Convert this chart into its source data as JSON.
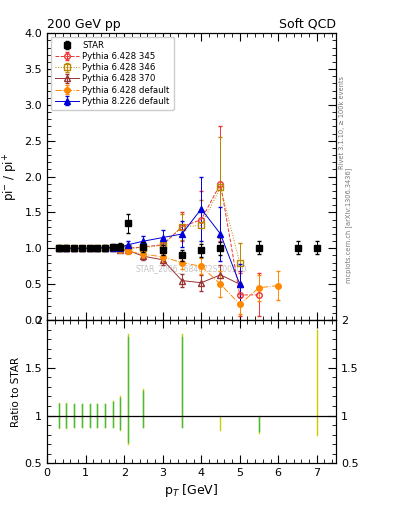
{
  "title_left": "200 GeV pp",
  "title_right": "Soft QCD",
  "ylabel_main": "pi$^{-}$ / pi$^{+}$",
  "ylabel_ratio": "Ratio to STAR",
  "xlabel": "p$_{T}$ [GeV]",
  "xlim": [
    0,
    7.5
  ],
  "ylim_main": [
    0,
    4
  ],
  "ylim_ratio": [
    0.5,
    2.0
  ],
  "right_label_top": "Rivet 3.1.10, ≥ 100k events",
  "right_label_bot": "mcplots.cern.ch [arXiv:1306.3436]",
  "watermark": "STAR_2006_I684872S500200",
  "star_x": [
    0.3,
    0.5,
    0.7,
    0.9,
    1.1,
    1.3,
    1.5,
    1.7,
    1.9,
    2.1,
    2.5,
    3.0,
    3.5,
    4.0,
    4.5,
    5.5,
    6.5,
    7.0
  ],
  "star_y": [
    1.01,
    1.01,
    1.0,
    1.0,
    1.01,
    1.01,
    1.01,
    1.02,
    1.02,
    1.35,
    1.02,
    0.97,
    0.9,
    0.97,
    1.0,
    1.01,
    1.01,
    1.01
  ],
  "star_yerr": [
    0.04,
    0.03,
    0.02,
    0.02,
    0.02,
    0.02,
    0.03,
    0.04,
    0.05,
    0.13,
    0.07,
    0.07,
    0.08,
    0.09,
    0.09,
    0.09,
    0.09,
    0.09
  ],
  "p6_345_x": [
    0.3,
    0.5,
    0.7,
    0.9,
    1.1,
    1.3,
    1.5,
    1.7,
    1.9,
    2.1,
    2.5,
    3.0,
    3.5,
    4.0,
    4.5,
    5.0,
    5.5
  ],
  "p6_345_y": [
    1.0,
    1.0,
    1.0,
    1.0,
    1.0,
    1.01,
    1.01,
    1.01,
    1.01,
    1.0,
    1.02,
    1.05,
    1.3,
    1.4,
    1.9,
    0.35,
    0.35
  ],
  "p6_345_yerr": [
    0.01,
    0.01,
    0.01,
    0.01,
    0.01,
    0.01,
    0.01,
    0.02,
    0.03,
    0.04,
    0.06,
    0.09,
    0.2,
    0.4,
    0.8,
    0.3,
    0.3
  ],
  "p6_346_x": [
    0.3,
    0.5,
    0.7,
    0.9,
    1.1,
    1.3,
    1.5,
    1.7,
    1.9,
    2.1,
    2.5,
    3.0,
    3.5,
    4.0,
    4.5,
    5.0
  ],
  "p6_346_y": [
    1.0,
    1.0,
    1.0,
    1.0,
    1.0,
    1.0,
    1.01,
    1.01,
    1.01,
    1.0,
    1.01,
    1.04,
    1.3,
    1.32,
    1.85,
    0.8
  ],
  "p6_346_yerr": [
    0.01,
    0.01,
    0.01,
    0.01,
    0.01,
    0.01,
    0.01,
    0.02,
    0.03,
    0.04,
    0.06,
    0.08,
    0.18,
    0.35,
    0.7,
    0.28
  ],
  "p6_370_x": [
    0.3,
    0.5,
    0.7,
    0.9,
    1.1,
    1.3,
    1.5,
    1.7,
    1.9,
    2.1,
    2.5,
    3.0,
    3.5,
    4.0,
    4.5,
    5.0
  ],
  "p6_370_y": [
    1.0,
    1.0,
    1.0,
    1.0,
    1.0,
    1.0,
    1.0,
    1.0,
    0.98,
    0.97,
    0.89,
    0.84,
    0.55,
    0.52,
    0.63,
    0.5
  ],
  "p6_370_yerr": [
    0.01,
    0.01,
    0.01,
    0.01,
    0.01,
    0.01,
    0.01,
    0.02,
    0.03,
    0.04,
    0.05,
    0.07,
    0.09,
    0.11,
    0.14,
    0.18
  ],
  "p6_def_x": [
    0.3,
    0.5,
    0.7,
    0.9,
    1.1,
    1.3,
    1.5,
    1.7,
    1.9,
    2.1,
    2.5,
    3.0,
    3.5,
    4.0,
    4.5,
    5.0,
    5.5,
    6.0
  ],
  "p6_def_y": [
    1.0,
    1.0,
    1.0,
    1.0,
    1.0,
    1.0,
    1.0,
    1.0,
    0.98,
    0.96,
    0.92,
    0.88,
    0.8,
    0.75,
    0.5,
    0.22,
    0.45,
    0.48
  ],
  "p6_def_yerr": [
    0.01,
    0.01,
    0.01,
    0.01,
    0.01,
    0.01,
    0.01,
    0.02,
    0.03,
    0.04,
    0.05,
    0.07,
    0.09,
    0.11,
    0.18,
    0.14,
    0.18,
    0.2
  ],
  "p8_def_x": [
    0.3,
    0.5,
    0.7,
    0.9,
    1.1,
    1.3,
    1.5,
    1.7,
    1.9,
    2.1,
    2.5,
    3.0,
    3.5,
    4.0,
    4.5,
    5.0
  ],
  "p8_def_y": [
    1.0,
    1.0,
    1.0,
    1.0,
    1.0,
    1.0,
    1.01,
    1.01,
    1.01,
    1.05,
    1.1,
    1.15,
    1.2,
    1.55,
    1.2,
    0.5
  ],
  "p8_def_yerr": [
    0.01,
    0.01,
    0.01,
    0.01,
    0.01,
    0.01,
    0.01,
    0.02,
    0.03,
    0.05,
    0.07,
    0.1,
    0.18,
    0.45,
    0.38,
    0.28
  ],
  "color_star": "#000000",
  "color_p6_345": "#ee3333",
  "color_p6_346": "#bb8800",
  "color_p6_370": "#993333",
  "color_p6_def": "#ff8800",
  "color_p8_def": "#0000dd",
  "color_yellow": "#cccc00",
  "color_green": "#44bb44",
  "ratio_ylw_x": [
    0.3,
    0.5,
    0.7,
    0.9,
    1.1,
    1.3,
    1.5,
    1.7,
    1.9,
    2.1,
    2.5,
    3.5,
    4.5,
    5.5,
    7.0
  ],
  "ratio_ylw_lo": [
    0.87,
    0.87,
    0.88,
    0.88,
    0.88,
    0.88,
    0.88,
    0.88,
    0.85,
    0.7,
    0.88,
    0.88,
    0.85,
    0.82,
    0.8
  ],
  "ratio_ylw_hi": [
    1.13,
    1.13,
    1.12,
    1.12,
    1.12,
    1.12,
    1.12,
    1.15,
    1.2,
    1.85,
    1.28,
    1.85,
    1.0,
    1.0,
    1.9
  ],
  "ratio_grn_x": [
    0.3,
    0.5,
    0.7,
    0.9,
    1.1,
    1.3,
    1.5,
    1.7,
    1.9,
    2.1,
    2.5,
    3.5,
    5.5
  ],
  "ratio_grn_lo": [
    0.88,
    0.88,
    0.88,
    0.88,
    0.88,
    0.88,
    0.88,
    0.88,
    0.86,
    0.72,
    0.88,
    0.88,
    0.84
  ],
  "ratio_grn_hi": [
    1.12,
    1.12,
    1.12,
    1.12,
    1.12,
    1.12,
    1.12,
    1.14,
    1.18,
    1.82,
    1.26,
    1.82,
    0.98
  ]
}
